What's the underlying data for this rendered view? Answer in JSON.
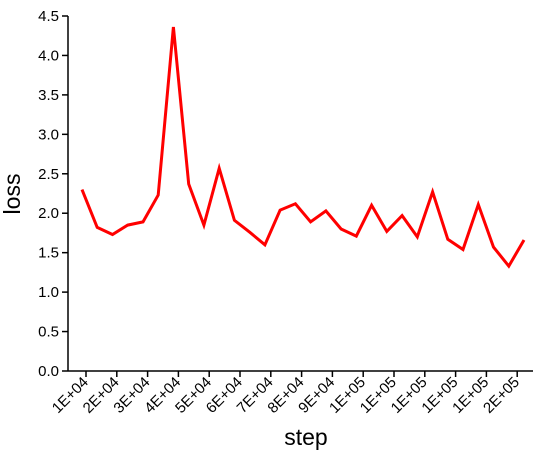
{
  "chart_data": {
    "type": "line",
    "title": "",
    "xlabel": "step",
    "ylabel": "loss",
    "ylim": [
      0,
      4.5
    ],
    "grid": false,
    "yticks": [
      "0.0",
      "0.5",
      "1.0",
      "1.5",
      "2.0",
      "2.5",
      "3.0",
      "3.5",
      "4.0",
      "4.5"
    ],
    "xticks": [
      "1E+04",
      "2E+04",
      "3E+04",
      "4E+04",
      "5E+04",
      "6E+04",
      "7E+04",
      "8E+04",
      "9E+04",
      "1E+05",
      "1E+05",
      "1E+05",
      "1E+05",
      "1E+05",
      "2E+05"
    ],
    "series": [
      {
        "color": "#ff0000",
        "y": [
          2.3,
          1.82,
          1.73,
          1.85,
          1.89,
          2.23,
          4.36,
          2.37,
          1.85,
          2.57,
          1.91,
          1.76,
          1.6,
          2.04,
          2.12,
          1.89,
          2.03,
          1.8,
          1.71,
          2.1,
          1.77,
          1.97,
          1.7,
          2.27,
          1.67,
          1.54,
          2.11,
          1.57,
          1.33,
          1.66
        ]
      }
    ]
  }
}
